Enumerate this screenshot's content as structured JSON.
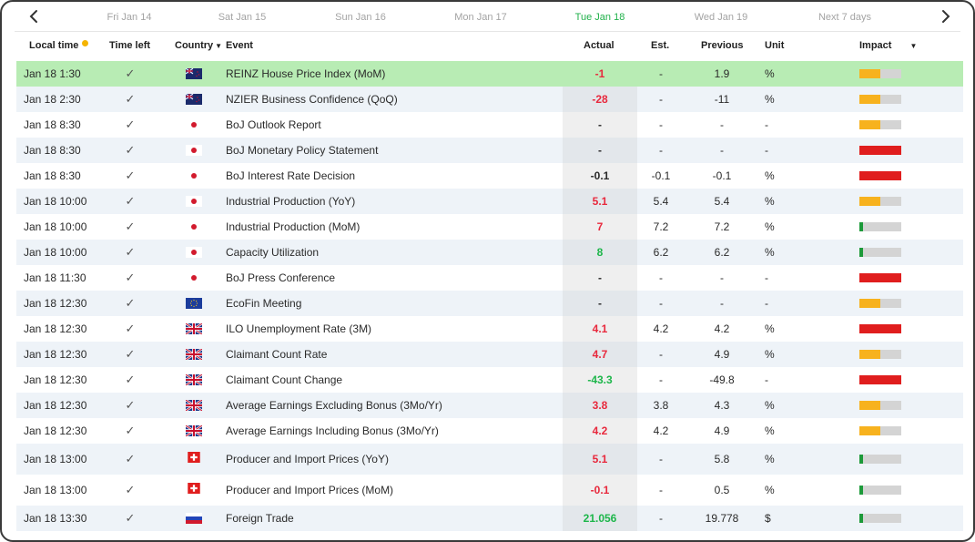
{
  "nav": {
    "days": [
      {
        "label": "Fri Jan 14",
        "active": false
      },
      {
        "label": "Sat Jan 15",
        "active": false
      },
      {
        "label": "Sun Jan 16",
        "active": false
      },
      {
        "label": "Mon Jan 17",
        "active": false
      },
      {
        "label": "Tue Jan 18",
        "active": true
      },
      {
        "label": "Wed Jan 19",
        "active": false
      },
      {
        "label": "Next 7 days",
        "active": false
      }
    ]
  },
  "columns": {
    "local_time": "Local time",
    "time_left": "Time left",
    "country": "Country",
    "event": "Event",
    "actual": "Actual",
    "est": "Est.",
    "previous": "Previous",
    "unit": "Unit",
    "impact": "Impact"
  },
  "colors": {
    "positive": "#1db64a",
    "negative": "#e8283c",
    "neutral": "#2a2a2a",
    "impact_high": "#e01e1e",
    "impact_medium": "#f7b21e",
    "impact_low": "#1d9a3a",
    "highlight_row": "#b8ecb4",
    "active_day": "#21b14b"
  },
  "rows": [
    {
      "time": "Jan 18 1:30",
      "check": "✓",
      "country": "nz",
      "event": "REINZ House Price Index (MoM)",
      "actual": "-1",
      "actual_color": "negative",
      "est": "-",
      "previous": "1.9",
      "unit": "%",
      "impact": "medium",
      "highlight": true
    },
    {
      "time": "Jan 18 2:30",
      "check": "✓",
      "country": "nz",
      "event": "NZIER Business Confidence (QoQ)",
      "actual": "-28",
      "actual_color": "negative",
      "est": "-",
      "previous": "-11",
      "unit": "%",
      "impact": "medium"
    },
    {
      "time": "Jan 18 8:30",
      "check": "✓",
      "country": "jp",
      "event": "BoJ Outlook Report",
      "actual": "-",
      "actual_color": "neutral",
      "est": "-",
      "previous": "-",
      "unit": "-",
      "impact": "medium"
    },
    {
      "time": "Jan 18 8:30",
      "check": "✓",
      "country": "jp",
      "event": "BoJ Monetary Policy Statement",
      "actual": "-",
      "actual_color": "neutral",
      "est": "-",
      "previous": "-",
      "unit": "-",
      "impact": "high"
    },
    {
      "time": "Jan 18 8:30",
      "check": "✓",
      "country": "jp",
      "event": "BoJ Interest Rate Decision",
      "actual": "-0.1",
      "actual_color": "neutral",
      "est": "-0.1",
      "previous": "-0.1",
      "unit": "%",
      "impact": "high"
    },
    {
      "time": "Jan 18 10:00",
      "check": "✓",
      "country": "jp",
      "event": "Industrial Production (YoY)",
      "actual": "5.1",
      "actual_color": "negative",
      "est": "5.4",
      "previous": "5.4",
      "unit": "%",
      "impact": "medium"
    },
    {
      "time": "Jan 18 10:00",
      "check": "✓",
      "country": "jp",
      "event": "Industrial Production (MoM)",
      "actual": "7",
      "actual_color": "negative",
      "est": "7.2",
      "previous": "7.2",
      "unit": "%",
      "impact": "low"
    },
    {
      "time": "Jan 18 10:00",
      "check": "✓",
      "country": "jp",
      "event": "Capacity Utilization",
      "actual": "8",
      "actual_color": "positive",
      "est": "6.2",
      "previous": "6.2",
      "unit": "%",
      "impact": "low"
    },
    {
      "time": "Jan 18 11:30",
      "check": "✓",
      "country": "jp",
      "event": "BoJ Press Conference",
      "actual": "-",
      "actual_color": "neutral",
      "est": "-",
      "previous": "-",
      "unit": "-",
      "impact": "high"
    },
    {
      "time": "Jan 18 12:30",
      "check": "✓",
      "country": "eu",
      "event": "EcoFin Meeting",
      "actual": "-",
      "actual_color": "neutral",
      "est": "-",
      "previous": "-",
      "unit": "-",
      "impact": "medium"
    },
    {
      "time": "Jan 18 12:30",
      "check": "✓",
      "country": "uk",
      "event": "ILO Unemployment Rate (3M)",
      "actual": "4.1",
      "actual_color": "negative",
      "est": "4.2",
      "previous": "4.2",
      "unit": "%",
      "impact": "high"
    },
    {
      "time": "Jan 18 12:30",
      "check": "✓",
      "country": "uk",
      "event": "Claimant Count Rate",
      "actual": "4.7",
      "actual_color": "negative",
      "est": "-",
      "previous": "4.9",
      "unit": "%",
      "impact": "medium"
    },
    {
      "time": "Jan 18 12:30",
      "check": "✓",
      "country": "uk",
      "event": "Claimant Count Change",
      "actual": "-43.3",
      "actual_color": "positive",
      "est": "-",
      "previous": "-49.8",
      "unit": "-",
      "impact": "high"
    },
    {
      "time": "Jan 18 12:30",
      "check": "✓",
      "country": "uk",
      "event": "Average Earnings Excluding Bonus (3Mo/Yr)",
      "actual": "3.8",
      "actual_color": "negative",
      "est": "3.8",
      "previous": "4.3",
      "unit": "%",
      "impact": "medium"
    },
    {
      "time": "Jan 18 12:30",
      "check": "✓",
      "country": "uk",
      "event": "Average Earnings Including Bonus (3Mo/Yr)",
      "actual": "4.2",
      "actual_color": "negative",
      "est": "4.2",
      "previous": "4.9",
      "unit": "%",
      "impact": "medium"
    },
    {
      "time": "Jan 18 13:00",
      "check": "✓",
      "country": "ch",
      "event": "Producer and Import Prices (YoY)",
      "actual": "5.1",
      "actual_color": "negative",
      "est": "-",
      "previous": "5.8",
      "unit": "%",
      "impact": "low"
    },
    {
      "time": "Jan 18 13:00",
      "check": "✓",
      "country": "ch",
      "event": "Producer and Import Prices (MoM)",
      "actual": "-0.1",
      "actual_color": "negative",
      "est": "-",
      "previous": "0.5",
      "unit": "%",
      "impact": "low"
    },
    {
      "time": "Jan 18 13:30",
      "check": "✓",
      "country": "ru",
      "event": "Foreign Trade",
      "actual": "21.056",
      "actual_color": "positive",
      "est": "-",
      "previous": "19.778",
      "unit": "$",
      "impact": "low"
    }
  ]
}
